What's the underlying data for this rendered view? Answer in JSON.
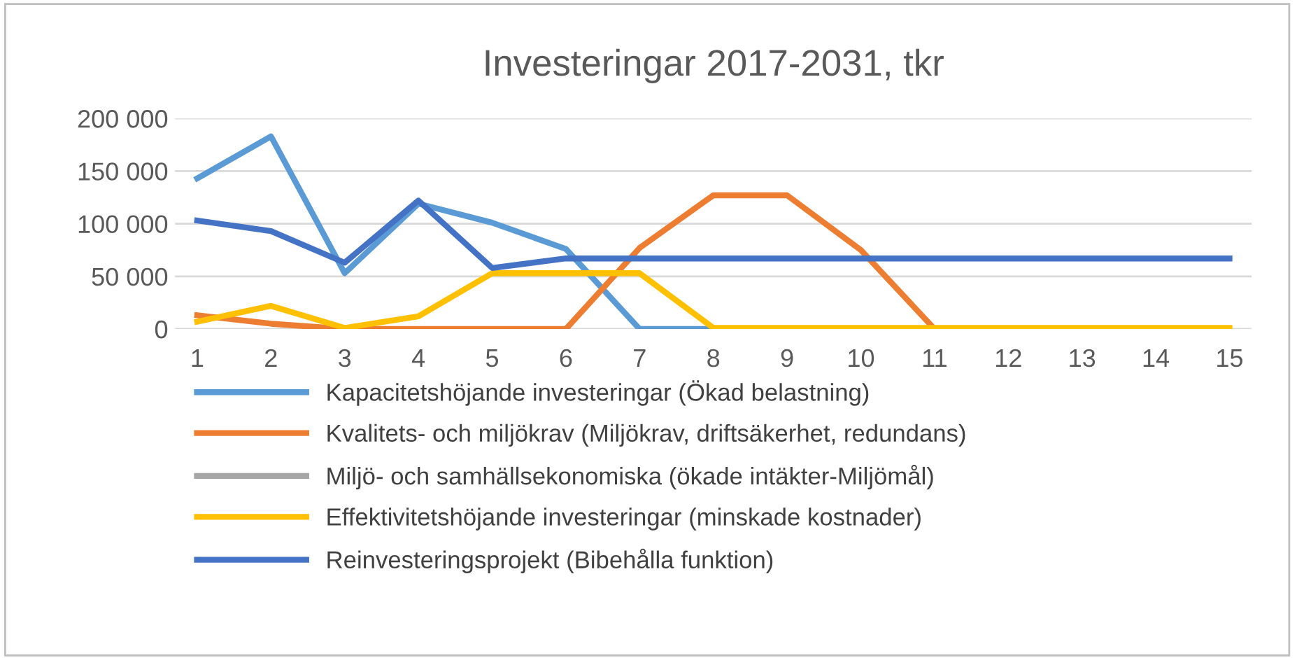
{
  "chart_data": {
    "type": "line",
    "title": "Investeringar 2017-2031, tkr",
    "categories": [
      "1",
      "2",
      "3",
      "4",
      "5",
      "6",
      "7",
      "8",
      "9",
      "10",
      "11",
      "12",
      "13",
      "14",
      "15"
    ],
    "series": [
      {
        "name": "Kapacitetshöjande investeringar (Ökad belastning)",
        "color": "#5b9bd5",
        "values": [
          143000,
          183000,
          53000,
          119000,
          101000,
          76000,
          0,
          0,
          0,
          null,
          null,
          null,
          null,
          null,
          null
        ]
      },
      {
        "name": "Kvalitets- och miljökrav (Miljökrav, driftsäkerhet, redundans)",
        "color": "#ed7d31",
        "values": [
          13000,
          5000,
          0,
          0,
          0,
          0,
          77000,
          127000,
          127000,
          75000,
          0,
          0,
          null,
          null,
          null
        ]
      },
      {
        "name": "Miljö- och samhällsekonomiska (ökade intäkter-Miljömål)",
        "color": "#a5a5a5",
        "values": [
          null,
          null,
          null,
          null,
          null,
          null,
          null,
          null,
          null,
          null,
          null,
          null,
          null,
          null,
          null
        ]
      },
      {
        "name": "Effektivitetshöjande investeringar (minskade kostnader)",
        "color": "#ffc000",
        "values": [
          7000,
          22000,
          1000,
          12000,
          53000,
          53000,
          53000,
          1000,
          1000,
          1000,
          1000,
          1000,
          1000,
          1000,
          1000
        ]
      },
      {
        "name": "Reinvesteringsprojekt (Bibehålla funktion)",
        "color": "#4472c4",
        "values": [
          103000,
          93000,
          63000,
          122000,
          58000,
          67000,
          67000,
          67000,
          67000,
          67000,
          67000,
          67000,
          67000,
          67000,
          67000
        ]
      }
    ],
    "ylim": [
      0,
      200000
    ],
    "yticks": [
      {
        "value": 0,
        "label": "0"
      },
      {
        "value": 50000,
        "label": "50 000"
      },
      {
        "value": 100000,
        "label": "100 000"
      },
      {
        "value": 150000,
        "label": "150 000"
      },
      {
        "value": 200000,
        "label": "200 000"
      }
    ],
    "grid": "y",
    "legend": "bottom",
    "marker": "none",
    "line_style": "solid"
  }
}
